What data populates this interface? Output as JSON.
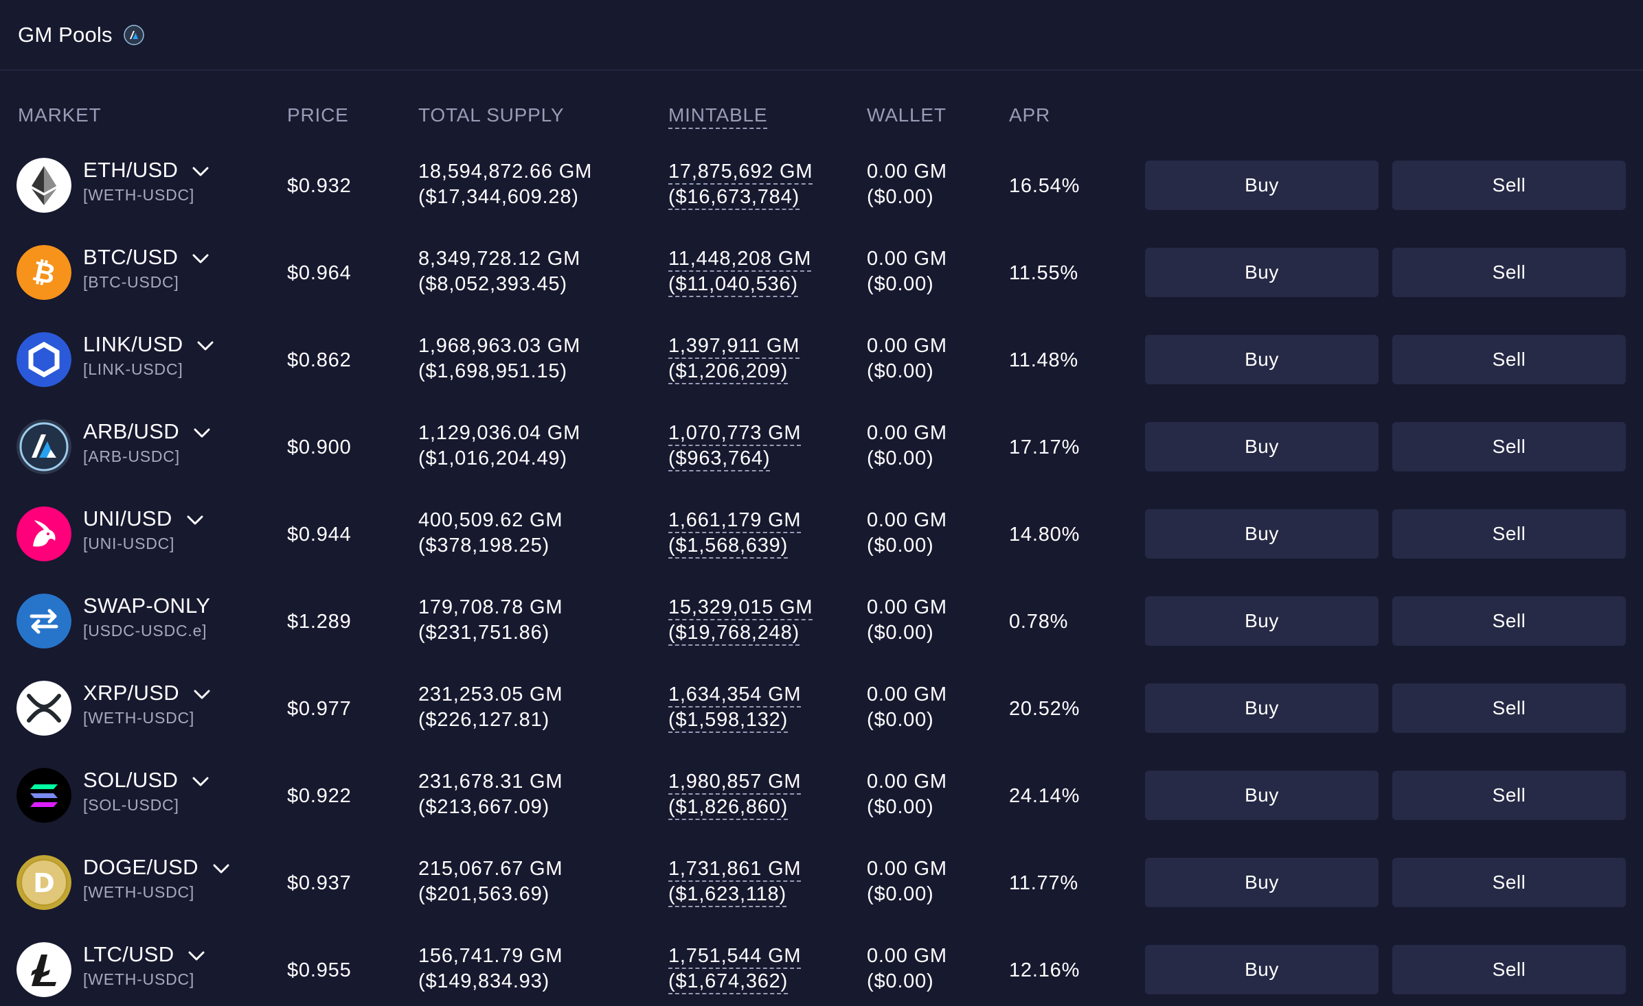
{
  "header": {
    "title": "GM Pools",
    "badge_icon": "arbitrum-icon"
  },
  "columns": {
    "market": "MARKET",
    "price": "PRICE",
    "total_supply": "TOTAL SUPPLY",
    "mintable": "MINTABLE",
    "wallet": "WALLET",
    "apr": "APR"
  },
  "buttons": {
    "buy": "Buy",
    "sell": "Sell"
  },
  "colors": {
    "background": "#17192f",
    "button": "#262a46",
    "muted_text": "#9a9bb6"
  },
  "rows": [
    {
      "name": "ETH/USD",
      "sub": "[WETH-USDC]",
      "icon": "eth-icon",
      "price": "$0.932",
      "supply": "18,594,872.66 GM",
      "supply_usd": "($17,344,609.28)",
      "mintable": "17,875,692 GM",
      "mintable_usd": "($16,673,784)",
      "wallet": "0.00 GM",
      "wallet_usd": "($0.00)",
      "apr": "16.54%",
      "has_chevron": true
    },
    {
      "name": "BTC/USD",
      "sub": "[BTC-USDC]",
      "icon": "btc-icon",
      "price": "$0.964",
      "supply": "8,349,728.12 GM",
      "supply_usd": "($8,052,393.45)",
      "mintable": "11,448,208 GM",
      "mintable_usd": "($11,040,536)",
      "wallet": "0.00 GM",
      "wallet_usd": "($0.00)",
      "apr": "11.55%",
      "has_chevron": true
    },
    {
      "name": "LINK/USD",
      "sub": "[LINK-USDC]",
      "icon": "link-icon",
      "price": "$0.862",
      "supply": "1,968,963.03 GM",
      "supply_usd": "($1,698,951.15)",
      "mintable": "1,397,911 GM",
      "mintable_usd": "($1,206,209)",
      "wallet": "0.00 GM",
      "wallet_usd": "($0.00)",
      "apr": "11.48%",
      "has_chevron": true
    },
    {
      "name": "ARB/USD",
      "sub": "[ARB-USDC]",
      "icon": "arb-icon",
      "price": "$0.900",
      "supply": "1,129,036.04 GM",
      "supply_usd": "($1,016,204.49)",
      "mintable": "1,070,773 GM",
      "mintable_usd": "($963,764)",
      "wallet": "0.00 GM",
      "wallet_usd": "($0.00)",
      "apr": "17.17%",
      "has_chevron": true
    },
    {
      "name": "UNI/USD",
      "sub": "[UNI-USDC]",
      "icon": "uni-icon",
      "price": "$0.944",
      "supply": "400,509.62 GM",
      "supply_usd": "($378,198.25)",
      "mintable": "1,661,179 GM",
      "mintable_usd": "($1,568,639)",
      "wallet": "0.00 GM",
      "wallet_usd": "($0.00)",
      "apr": "14.80%",
      "has_chevron": true
    },
    {
      "name": "SWAP-ONLY",
      "sub": "[USDC-USDC.e]",
      "icon": "swap-icon",
      "price": "$1.289",
      "supply": "179,708.78 GM",
      "supply_usd": "($231,751.86)",
      "mintable": "15,329,015 GM",
      "mintable_usd": "($19,768,248)",
      "wallet": "0.00 GM",
      "wallet_usd": "($0.00)",
      "apr": "0.78%",
      "has_chevron": false
    },
    {
      "name": "XRP/USD",
      "sub": "[WETH-USDC]",
      "icon": "xrp-icon",
      "price": "$0.977",
      "supply": "231,253.05 GM",
      "supply_usd": "($226,127.81)",
      "mintable": "1,634,354 GM",
      "mintable_usd": "($1,598,132)",
      "wallet": "0.00 GM",
      "wallet_usd": "($0.00)",
      "apr": "20.52%",
      "has_chevron": true
    },
    {
      "name": "SOL/USD",
      "sub": "[SOL-USDC]",
      "icon": "sol-icon",
      "price": "$0.922",
      "supply": "231,678.31 GM",
      "supply_usd": "($213,667.09)",
      "mintable": "1,980,857 GM",
      "mintable_usd": "($1,826,860)",
      "wallet": "0.00 GM",
      "wallet_usd": "($0.00)",
      "apr": "24.14%",
      "has_chevron": true
    },
    {
      "name": "DOGE/USD",
      "sub": "[WETH-USDC]",
      "icon": "doge-icon",
      "price": "$0.937",
      "supply": "215,067.67 GM",
      "supply_usd": "($201,563.69)",
      "mintable": "1,731,861 GM",
      "mintable_usd": "($1,623,118)",
      "wallet": "0.00 GM",
      "wallet_usd": "($0.00)",
      "apr": "11.77%",
      "has_chevron": true
    },
    {
      "name": "LTC/USD",
      "sub": "[WETH-USDC]",
      "icon": "ltc-icon",
      "price": "$0.955",
      "supply": "156,741.79 GM",
      "supply_usd": "($149,834.93)",
      "mintable": "1,751,544 GM",
      "mintable_usd": "($1,674,362)",
      "wallet": "0.00 GM",
      "wallet_usd": "($0.00)",
      "apr": "12.16%",
      "has_chevron": true
    }
  ]
}
